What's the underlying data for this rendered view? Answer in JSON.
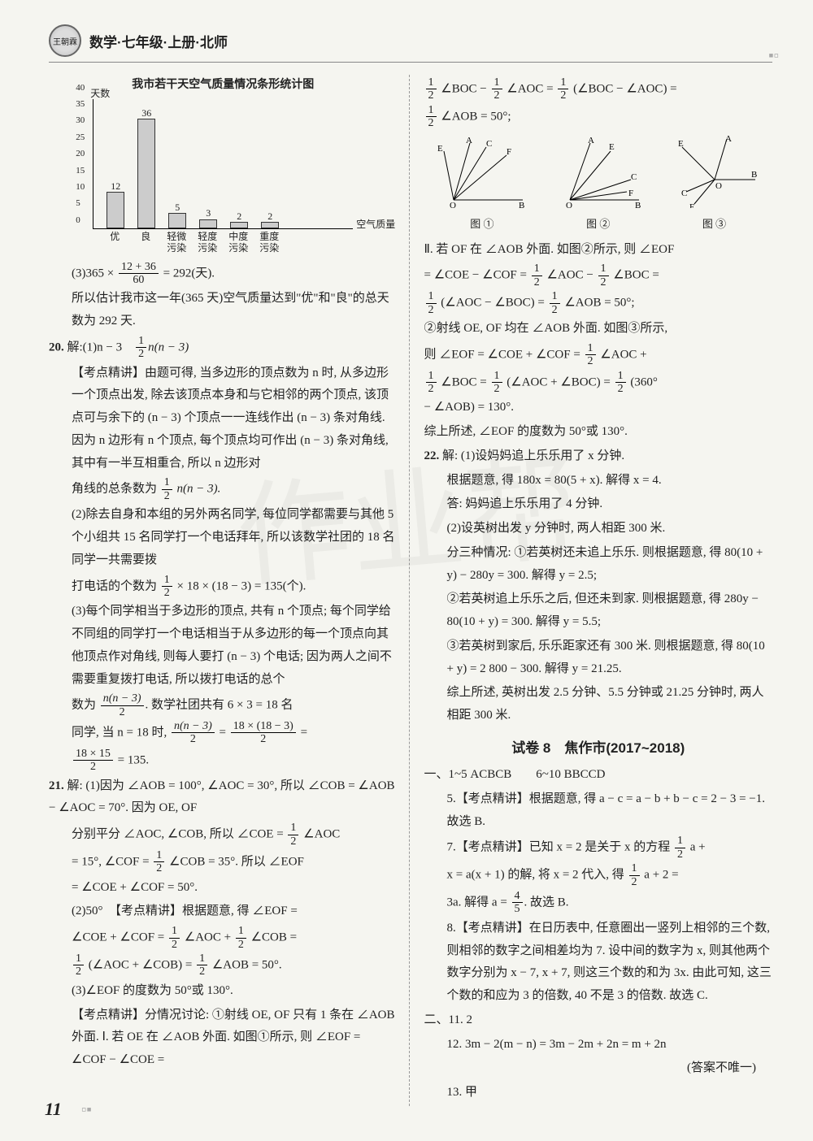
{
  "header": {
    "title": "数学·七年级·上册·北师"
  },
  "watermark": "作业帮",
  "page_number": "11",
  "chart": {
    "title": "我市若干天空气质量情况条形统计图",
    "type": "bar",
    "y_label": "天数",
    "x_label": "空气质量",
    "categories": [
      "优",
      "良",
      "轻微\n污染",
      "轻度\n污染",
      "中度\n污染",
      "重度\n污染"
    ],
    "values": [
      12,
      36,
      5,
      3,
      2,
      2
    ],
    "value_labels": [
      "12",
      "36",
      "5",
      "3",
      "2",
      "2"
    ],
    "ylim": [
      0,
      40
    ],
    "ytick_step": 5,
    "yticks": [
      "0",
      "5",
      "10",
      "15",
      "20",
      "25",
      "30",
      "35",
      "40"
    ],
    "bar_color": "#cccccc",
    "bar_border": "#333333",
    "background_color": "#f5f5f0"
  },
  "left": {
    "calc3": "(3)365 × ",
    "calc3_frac_num": "12 + 36",
    "calc3_frac_den": "60",
    "calc3_end": " = 292(天).",
    "calc3_line2": "所以估计我市这一年(365 天)空气质量达到\"优\"和\"良\"的总天数为 292 天.",
    "q20_label": "20.",
    "q20_1a": "解:(1)n − 3　",
    "q20_1_fracn": "1",
    "q20_1_fracd": "2",
    "q20_1b": "n(n − 3)",
    "q20_kd": "【考点精讲】由题可得, 当多边形的顶点数为 n 时, 从多边形一个顶点出发, 除去该顶点本身和与它相邻的两个顶点, 该顶点可与余下的 (n − 3) 个顶点一一连线作出 (n − 3) 条对角线. 因为 n 边形有 n 个顶点, 每个顶点均可作出 (n − 3) 条对角线, 其中有一半互相重合, 所以 n 边形对",
    "q20_kd2a": "角线的总条数为 ",
    "q20_kd2_n": "1",
    "q20_kd2_d": "2",
    "q20_kd2b": " n(n − 3).",
    "q20_2": "(2)除去自身和本组的另外两名同学, 每位同学都需要与其他 5 个小组共 15 名同学打一个电话拜年, 所以该数学社团的 18 名同学一共需要拨",
    "q20_2b_a": "打电话的个数为 ",
    "q20_2b_n": "1",
    "q20_2b_d": "2",
    "q20_2b_b": " × 18 × (18 − 3) = 135(个).",
    "q20_3a": "(3)每个同学相当于多边形的顶点, 共有 n 个顶点; 每个同学给不同组的同学打一个电话相当于从多边形的每一个顶点向其他顶点作对角线, 则每人要打 (n − 3) 个电话; 因为两人之间不需要重复拨打电话, 所以拨打电话的总个",
    "q20_3b_a": "数为 ",
    "q20_3b_n": "n(n − 3)",
    "q20_3b_d": "2",
    "q20_3b_b": ". 数学社团共有 6 × 3 = 18 名",
    "q20_3c_a": "同学, 当 n = 18 时, ",
    "q20_3c_n1": "n(n − 3)",
    "q20_3c_d1": "2",
    "q20_3c_eq": " = ",
    "q20_3c_n2": "18 × (18 − 3)",
    "q20_3c_d2": "2",
    "q20_3c_eq2": " = ",
    "q20_3d_n": "18 × 15",
    "q20_3d_d": "2",
    "q20_3d_b": " = 135.",
    "q21_label": "21.",
    "q21_1a": "解: (1)因为 ∠AOB = 100°, ∠AOC = 30°, 所以 ∠COB = ∠AOB − ∠AOC = 70°. 因为 OE, OF",
    "q21_1b_a": "分别平分 ∠AOC, ∠COB, 所以 ∠COE = ",
    "q21_1b_n": "1",
    "q21_1b_d": "2",
    "q21_1b_b": " ∠AOC",
    "q21_1c_a": "= 15°, ∠COF = ",
    "q21_1c_n": "1",
    "q21_1c_d": "2",
    "q21_1c_b": " ∠COB = 35°. 所以 ∠EOF",
    "q21_1d": "= ∠COE + ∠COF = 50°.",
    "q21_2a": "(2)50°　【考点精讲】根据题意, 得 ∠EOF =",
    "q21_2b_a": "∠COE + ∠COF = ",
    "q21_2b_n": "1",
    "q21_2b_d": "2",
    "q21_2b_mid": " ∠AOC + ",
    "q21_2b_n2": "1",
    "q21_2b_d2": "2",
    "q21_2b_b": " ∠COB =",
    "q21_2c_n": "1",
    "q21_2c_d": "2",
    "q21_2c_mid": " (∠AOC + ∠COB) = ",
    "q21_2c_n2": "1",
    "q21_2c_d2": "2",
    "q21_2c_b": " ∠AOB = 50°.",
    "q21_3a": "(3)∠EOF 的度数为 50°或 130°.",
    "q21_3b": "【考点精讲】分情况讨论: ①射线 OE, OF 只有 1 条在 ∠AOB 外面. Ⅰ. 若 OE 在 ∠AOB 外面. 如图①所示, 则 ∠EOF = ∠COF − ∠COE ="
  },
  "right": {
    "top_n1": "1",
    "top_d1": "2",
    "top_a": " ∠BOC − ",
    "top_n2": "1",
    "top_d2": "2",
    "top_b": " ∠AOC = ",
    "top_n3": "1",
    "top_d3": "2",
    "top_c": " (∠BOC − ∠AOC) =",
    "top2_n": "1",
    "top2_d": "2",
    "top2_b": " ∠AOB = 50°;",
    "fig_labels": {
      "f1": "图 ①",
      "f2": "图 ②",
      "f3": "图 ③"
    },
    "p2a": "Ⅱ. 若 OF 在 ∠AOB 外面. 如图②所示, 则 ∠EOF",
    "p2b_a": "= ∠COE − ∠COF = ",
    "p2b_n1": "1",
    "p2b_d1": "2",
    "p2b_mid": " ∠AOC − ",
    "p2b_n2": "1",
    "p2b_d2": "2",
    "p2b_b": " ∠BOC =",
    "p2c_n1": "1",
    "p2c_d1": "2",
    "p2c_mid": " (∠AOC − ∠BOC) = ",
    "p2c_n2": "1",
    "p2c_d2": "2",
    "p2c_b": " ∠AOB = 50°;",
    "p3a": "②射线 OE, OF 均在 ∠AOB 外面. 如图③所示,",
    "p3b_a": "则 ∠EOF = ∠COE + ∠COF = ",
    "p3b_n": "1",
    "p3b_d": "2",
    "p3b_b": " ∠AOC +",
    "p3c_n1": "1",
    "p3c_d1": "2",
    "p3c_mid": " ∠BOC = ",
    "p3c_n2": "1",
    "p3c_d2": "2",
    "p3c_mid2": " (∠AOC + ∠BOC) = ",
    "p3c_n3": "1",
    "p3c_d3": "2",
    "p3c_b": " (360°",
    "p3d": "− ∠AOB) = 130°.",
    "p3e": "综上所述, ∠EOF 的度数为 50°或 130°.",
    "q22_label": "22.",
    "q22_1a": "解: (1)设妈妈追上乐乐用了 x 分钟.",
    "q22_1b": "根据题意, 得 180x = 80(5 + x). 解得 x = 4.",
    "q22_1c": "答: 妈妈追上乐乐用了 4 分钟.",
    "q22_2a": "(2)设英树出发 y 分钟时, 两人相距 300 米.",
    "q22_2b": "分三种情况: ①若英树还未追上乐乐. 则根据题意, 得 80(10 + y) − 280y = 300. 解得 y = 2.5;",
    "q22_2c": "②若英树追上乐乐之后, 但还未到家. 则根据题意, 得 280y − 80(10 + y) = 300. 解得 y = 5.5;",
    "q22_2d": "③若英树到家后, 乐乐距家还有 300 米. 则根据题意, 得 80(10 + y) = 2 800 − 300. 解得 y = 21.25.",
    "q22_2e": "综上所述, 英树出发 2.5 分钟、5.5 分钟或 21.25 分钟时, 两人相距 300 米.",
    "test8_title": "试卷 8　焦作市(2017~2018)",
    "ans1": "一、1~5 ACBCB　　6~10 BBCCD",
    "a5": "5.【考点精讲】根据题意, 得 a − c = a − b + b − c = 2 − 3 = −1. 故选 B.",
    "a7_a": "7.【考点精讲】已知 x = 2 是关于 x 的方程 ",
    "a7_n1": "1",
    "a7_d1": "2",
    "a7_b": " a +",
    "a7_c_a": "x = a(x + 1) 的解, 将 x = 2 代入, 得 ",
    "a7_n2": "1",
    "a7_d2": "2",
    "a7_c_b": " a + 2 =",
    "a7_d_a": "3a. 解得 a = ",
    "a7_n3": "4",
    "a7_d3": "5",
    "a7_d_b": ". 故选 B.",
    "a8": "8.【考点精讲】在日历表中, 任意圈出一竖列上相邻的三个数, 则相邻的数字之间相差均为 7. 设中间的数字为 x, 则其他两个数字分别为 x − 7, x + 7, 则这三个数的和为 3x. 由此可知, 这三个数的和应为 3 的倍数, 40 不是 3 的倍数. 故选 C.",
    "sec2": "二、11. 2",
    "a12a": "12. 3m − 2(m − n) = 3m − 2m + 2n = m + 2n",
    "a12b": "(答案不唯一)",
    "a13": "13. 甲"
  }
}
